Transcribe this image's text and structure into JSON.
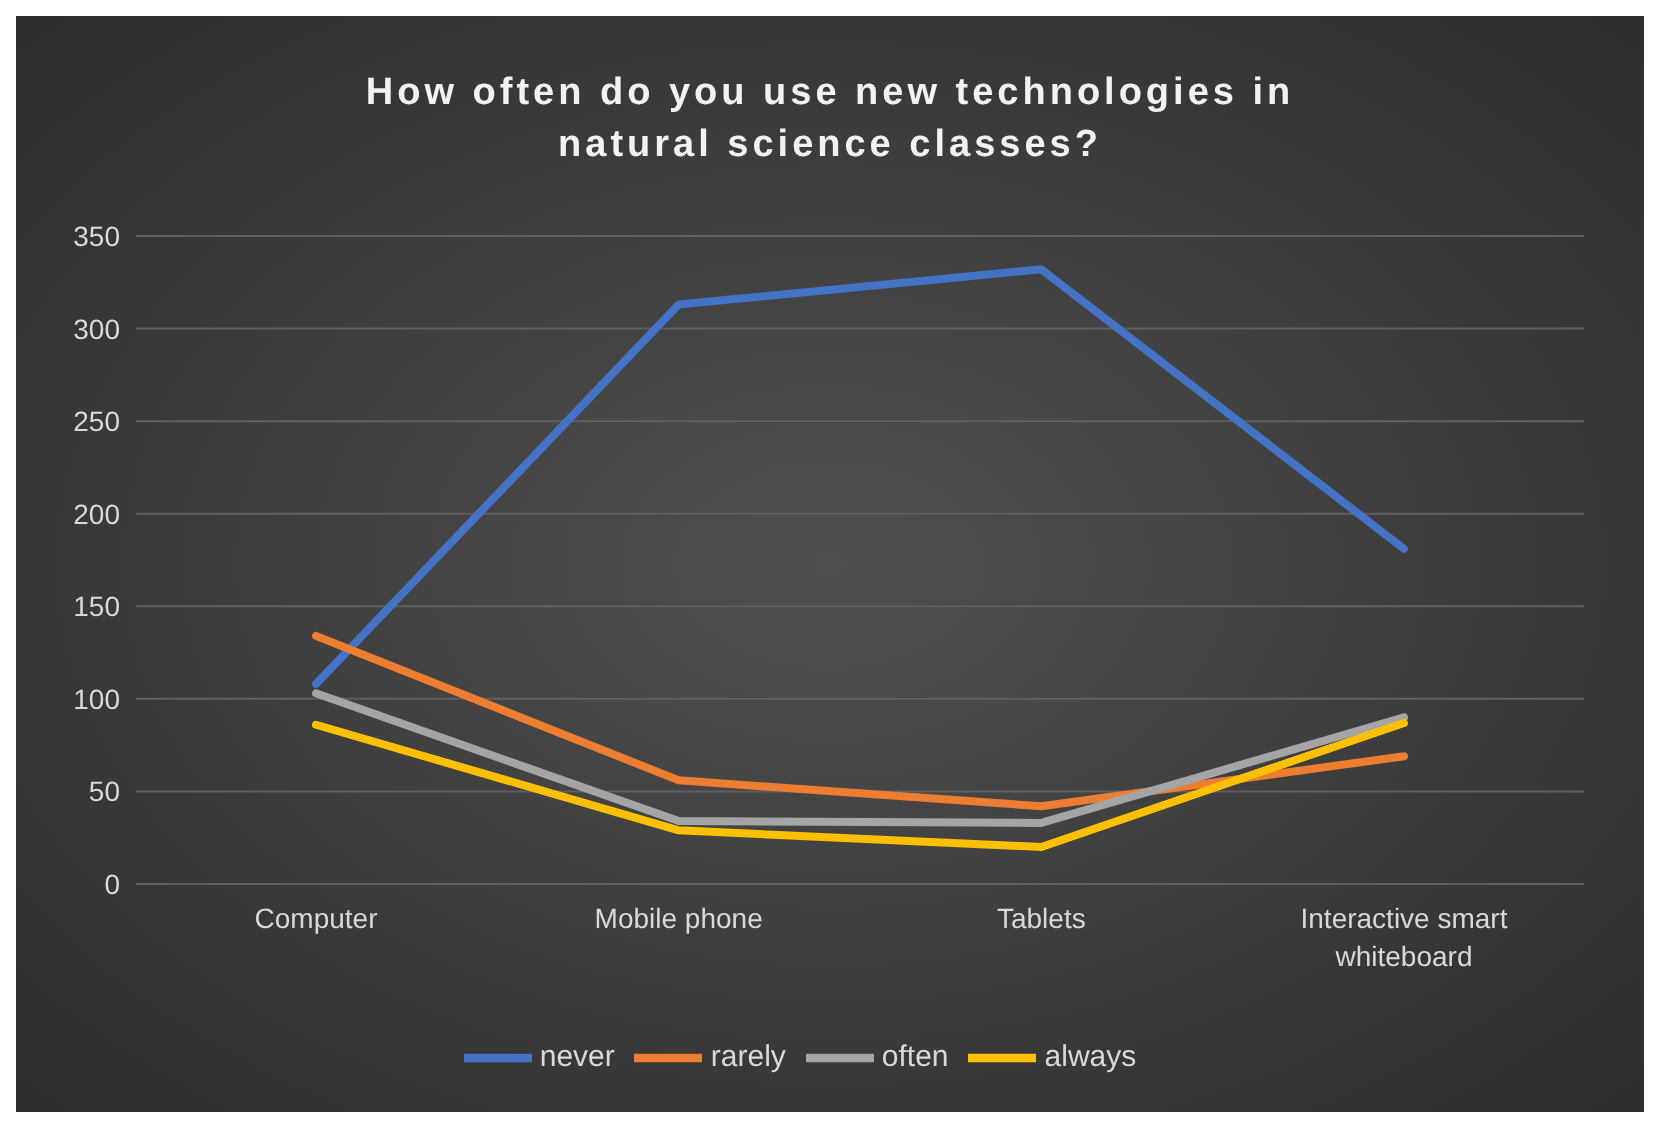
{
  "chart_data": {
    "type": "line",
    "title": "How often do you use new technologies in natural science classes?",
    "categories": [
      "Computer",
      "Mobile phone",
      "Tablets",
      "Interactive smart whiteboard"
    ],
    "series": [
      {
        "name": "never",
        "color": "#4472c4",
        "values": [
          108,
          313,
          332,
          181
        ]
      },
      {
        "name": "rarely",
        "color": "#ed7d31",
        "values": [
          134,
          56,
          42,
          69
        ]
      },
      {
        "name": "often",
        "color": "#a5a5a5",
        "values": [
          103,
          34,
          33,
          90
        ]
      },
      {
        "name": "always",
        "color": "#ffc000",
        "values": [
          86,
          29,
          20,
          87
        ]
      }
    ],
    "ylim": [
      0,
      350
    ],
    "yticks": [
      0,
      50,
      100,
      150,
      200,
      250,
      300,
      350
    ],
    "grid": "y",
    "legend": "bottom",
    "marker": "none",
    "line_style": "solid"
  }
}
